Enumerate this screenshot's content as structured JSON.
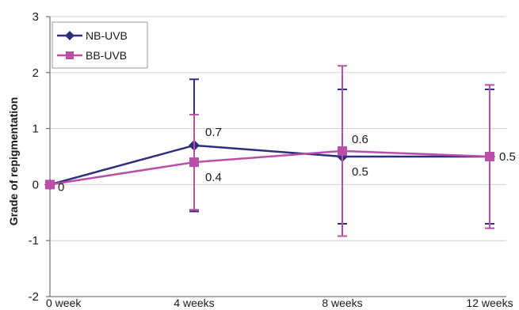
{
  "chart_data": {
    "type": "line",
    "ylabel": "Grade of repigmentation",
    "xlabel": "",
    "categories": [
      "0 week",
      "4 weeks",
      "8 weeks",
      "12 weeks"
    ],
    "ylim": [
      -2,
      3
    ],
    "yticks": [
      -2,
      -1,
      0,
      1,
      2,
      3
    ],
    "gridlines": "horizontal",
    "legend_position": "top-left",
    "series": [
      {
        "name": "NB-UVB",
        "color": "#2e2e7a",
        "marker": "diamond",
        "values": [
          0,
          0.7,
          0.5,
          0.5
        ],
        "error": [
          0,
          1.18,
          1.2,
          1.2
        ]
      },
      {
        "name": "BB-UVB",
        "color": "#b94fa8",
        "marker": "square",
        "values": [
          0,
          0.4,
          0.6,
          0.5
        ],
        "error": [
          0,
          0.85,
          1.52,
          1.28
        ]
      }
    ],
    "data_labels": [
      {
        "text": "0",
        "category": "0 week",
        "value": 0
      },
      {
        "text": "0.7",
        "category": "4 weeks",
        "value": 0.7
      },
      {
        "text": "0.4",
        "category": "4 weeks",
        "value": 0.4
      },
      {
        "text": "0.6",
        "category": "8 weeks",
        "value": 0.6
      },
      {
        "text": "0.5",
        "category": "8 weeks",
        "value": 0.5
      },
      {
        "text": "0.5",
        "category": "12 weeks",
        "value": 0.5
      }
    ]
  }
}
